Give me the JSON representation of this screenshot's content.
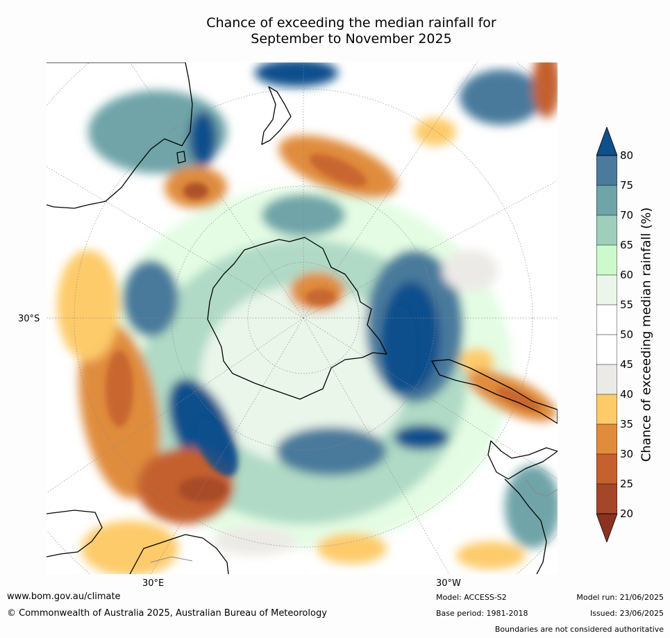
{
  "title_line1": "Chance of exceeding the median rainfall for",
  "title_line2": "September to November 2025",
  "labels": {
    "lat_30s": "30°S",
    "lon_30e": "30°E",
    "lon_30w": "30°W"
  },
  "colorbar": {
    "title": "Chance of exceeding median rainfall (%)",
    "ticks": [
      "80",
      "75",
      "70",
      "65",
      "60",
      "55",
      "50",
      "45",
      "40",
      "35",
      "30",
      "25",
      "20"
    ],
    "colors": [
      "#0e4f8c",
      "#4a7a9c",
      "#6fa4a8",
      "#9fcfbc",
      "#cdfacd",
      "#e9f6e9",
      "#ffffff",
      "#ffffff",
      "#eceae6",
      "#fdcb6a",
      "#e08c3c",
      "#c4612f",
      "#a34728",
      "#8c3220"
    ]
  },
  "footer": {
    "website": "www.bom.gov.au/climate",
    "copyright": "© Commonwealth of Australia 2025, Australian Bureau of Meteorology",
    "model": "Model: ACCESS-S2",
    "base_period": "Base period: 1981-2018",
    "model_run": "Model run: 21/06/2025",
    "issued": "Issued: 23/06/2025",
    "disclaimer": "Boundaries are not considered authoritative"
  }
}
